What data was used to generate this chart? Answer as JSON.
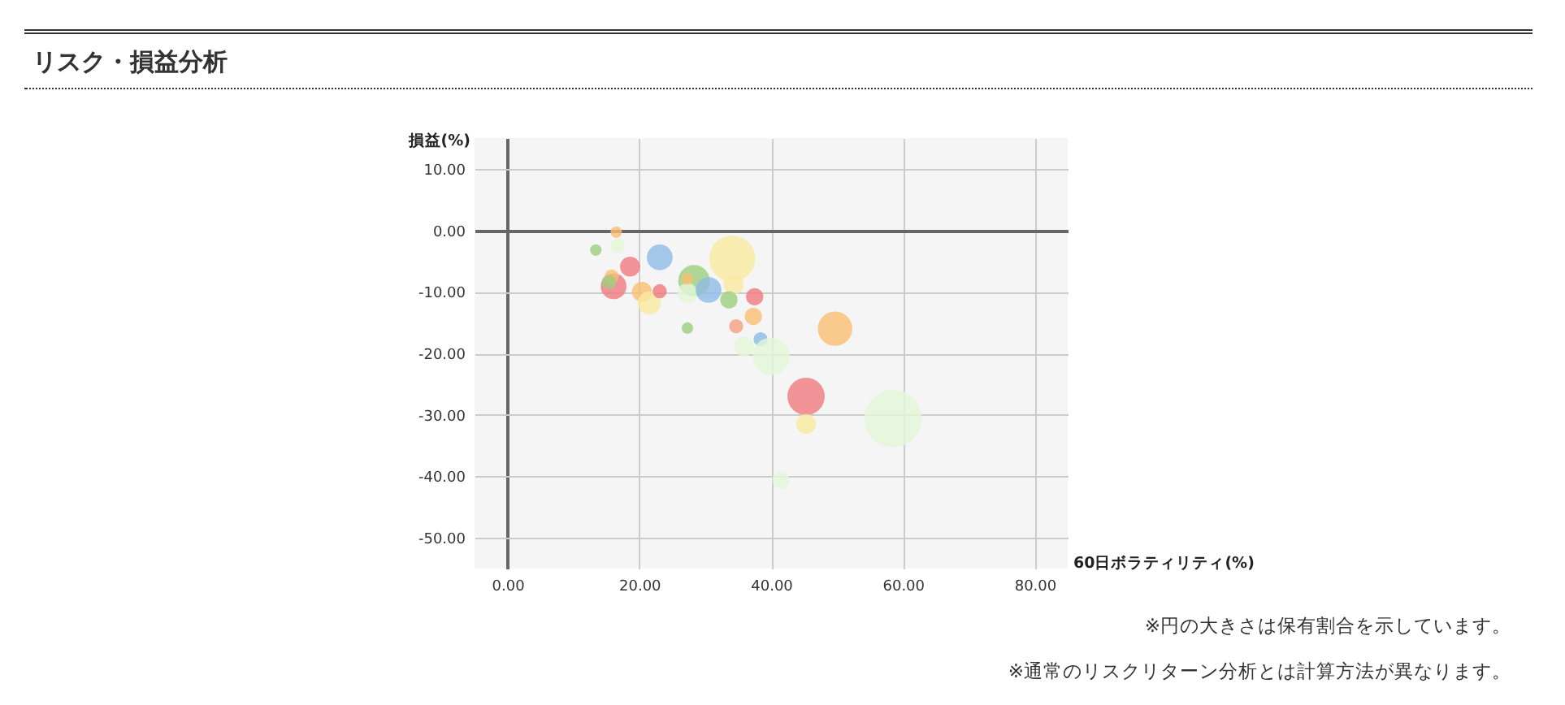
{
  "chart_data": {
    "type": "bubble",
    "title": "リスク・損益分析",
    "xlabel": "60日ボラティリティ(%)",
    "ylabel": "損益(%)",
    "annotations": [
      "※円の大きさは保有割合を示しています。",
      "※通常のリスクリターン分析とは計算方法が異なります。"
    ],
    "xlim": [
      -5,
      85
    ],
    "ylim": [
      -55,
      15
    ],
    "xticks": [
      {
        "value": 0,
        "label": "0.00"
      },
      {
        "value": 20,
        "label": "20.00"
      },
      {
        "value": 40,
        "label": "40.00"
      },
      {
        "value": 60,
        "label": "60.00"
      },
      {
        "value": 80,
        "label": "80.00"
      }
    ],
    "yticks": [
      {
        "value": 10,
        "label": "10.00"
      },
      {
        "value": 0,
        "label": "0.00"
      },
      {
        "value": -10,
        "label": "-10.00"
      },
      {
        "value": -20,
        "label": "-20.00"
      },
      {
        "value": -30,
        "label": "-30.00"
      },
      {
        "value": -40,
        "label": "-40.00"
      },
      {
        "value": -50,
        "label": "-50.00"
      }
    ],
    "grid": true,
    "x": [
      16.5,
      13.4,
      16.7,
      18.6,
      23.1,
      16.1,
      15.8,
      15.4,
      20.4,
      21.5,
      23.1,
      27.3,
      34.1,
      28.3,
      27.3,
      27.3,
      30.5,
      34.3,
      33.6,
      37.5,
      37.3,
      34.7,
      38.4,
      35.9,
      40,
      49.7,
      45.3,
      45.3,
      58.5,
      41.5
    ],
    "values": [
      -0.3,
      -3.2,
      -2.5,
      -5.9,
      -4.4,
      -9.1,
      -7.5,
      -8.4,
      -10,
      -11.8,
      -9.9,
      -15.9,
      -4.6,
      -8.2,
      -10.2,
      -7.9,
      -9.7,
      -8.8,
      -11.3,
      -10.8,
      -14,
      -15.6,
      -17.7,
      -18.9,
      -20.5,
      -16,
      -27,
      -31.5,
      -30.6,
      -40.6
    ],
    "sizes": [
      0.04,
      0.04,
      0.06,
      0.12,
      0.2,
      0.2,
      0.06,
      0.06,
      0.12,
      0.16,
      0.06,
      0.04,
      0.64,
      0.3,
      0.12,
      0.04,
      0.2,
      0.12,
      0.09,
      0.09,
      0.09,
      0.06,
      0.06,
      0.12,
      0.42,
      0.36,
      0.42,
      0.12,
      1,
      0.09
    ],
    "colors": [
      "#fbbf72",
      "#9ccf80",
      "#e2f8d8",
      "#f07a7e",
      "#8fbbe5",
      "#f07a7e",
      "#fbbf72",
      "#9ccf80",
      "#fbbf72",
      "#faeaa0",
      "#f07a7e",
      "#9ccf80",
      "#faeaa0",
      "#9ccf80",
      "#e2f8d8",
      "#fbbf72",
      "#8fbbe5",
      "#faeaa0",
      "#9ccf80",
      "#f07a7e",
      "#fbbf72",
      "#f4a080",
      "#8fbbe5",
      "#e2f8d8",
      "#e2f8d8",
      "#fbbf72",
      "#f07a7e",
      "#faeaa0",
      "#e2f8d8",
      "#e2f8d8"
    ]
  }
}
